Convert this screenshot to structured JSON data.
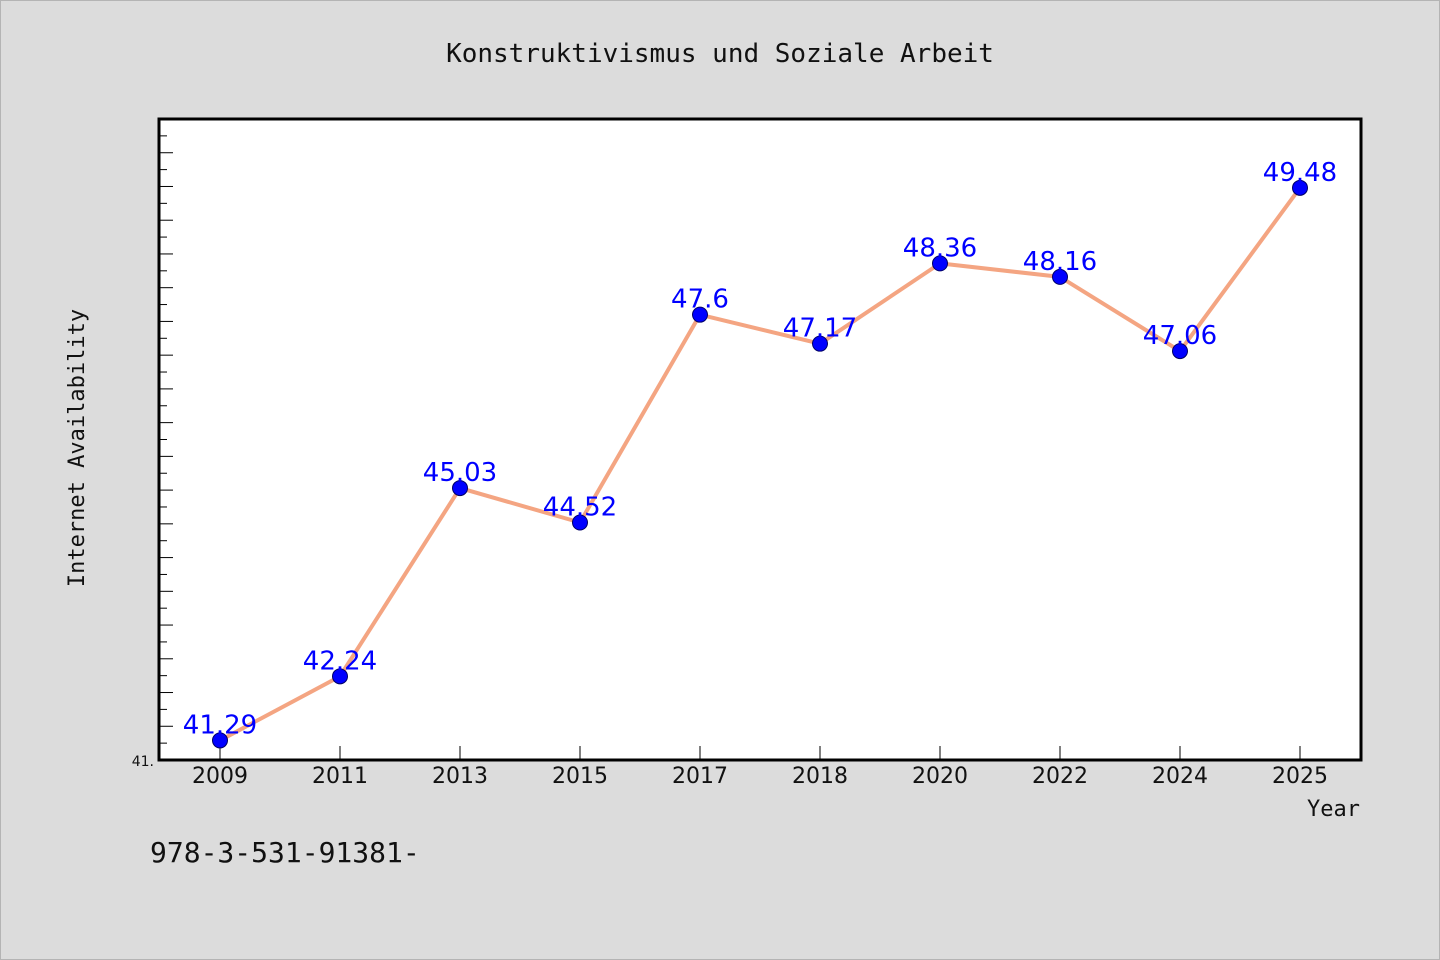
{
  "chart_data": {
    "type": "line",
    "title": "Konstruktivismus und Soziale Arbeit",
    "xlabel": "Year",
    "ylabel": "Internet Availability",
    "categories": [
      "2009",
      "2011",
      "2013",
      "2015",
      "2017",
      "2018",
      "2020",
      "2022",
      "2024",
      "2025"
    ],
    "series": [
      {
        "values": [
          41.29,
          42.24,
          45.03,
          44.52,
          47.6,
          47.17,
          48.36,
          48.16,
          47.06,
          49.48
        ],
        "data_labels": [
          "41.29",
          "42.24",
          "45.03",
          "44.52",
          "47.6",
          "47.17",
          "48.36",
          "48.16",
          "47.06",
          "49.48"
        ]
      }
    ],
    "ylim": [
      41.0,
      50.5
    ],
    "y_tick_label": "41.",
    "grid": false,
    "legend": "none",
    "colors": {
      "line": "#f4a582",
      "marker": "#0000ff",
      "label": "#0000ff",
      "plot_background": "#ffffff",
      "page_background": "#dcdcdc"
    }
  },
  "footnote": "978-3-531-91381-"
}
